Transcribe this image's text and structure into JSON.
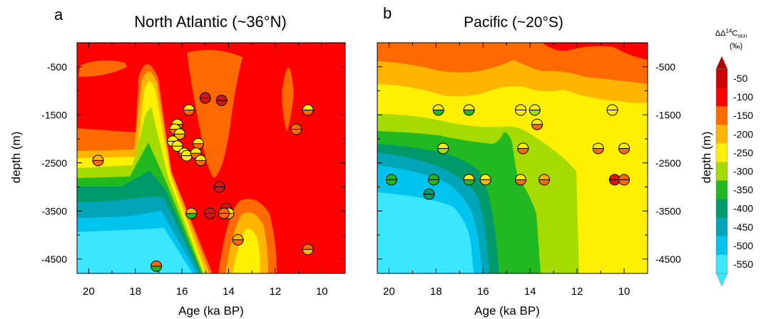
{
  "colormap": {
    "title": "ΔΔ",
    "title_sup": "14",
    "title_main": "C",
    "title_sub": "ocn",
    "unit": "(‰)",
    "levels": [
      "-50",
      "-100",
      "-150",
      "-200",
      "-250",
      "-300",
      "-350",
      "-400",
      "-450",
      "-500",
      "-550"
    ],
    "colors": [
      "#cc0000",
      "#ff0000",
      "#ff6a00",
      "#ffb400",
      "#ffef00",
      "#a6db00",
      "#22b822",
      "#009a6a",
      "#00a5b8",
      "#00c4ee",
      "#3be7ff"
    ]
  },
  "chart_data": [
    {
      "type": "contour",
      "panel_letter": "a",
      "title": "North Atlantic (~36°N)",
      "xlabel": "Age (ka BP)",
      "ylabel": "depth (m)",
      "xlim": [
        20.5,
        9
      ],
      "ylim": [
        -4800,
        0
      ],
      "xticks": [
        "20",
        "18",
        "16",
        "14",
        "12",
        "10"
      ],
      "yticks": [
        "-500",
        "-1500",
        "-2500",
        "-3500",
        "-4500"
      ],
      "points": [
        {
          "age": 15.0,
          "depth": -1150,
          "top": "#d01818",
          "bottom": "#d01818"
        },
        {
          "age": 14.3,
          "depth": -1200,
          "top": "#d01818",
          "bottom": "#d01818"
        },
        {
          "age": 15.7,
          "depth": -1400,
          "top": "#ffef00",
          "bottom": "#ff6a00"
        },
        {
          "age": 10.6,
          "depth": -1400,
          "top": "#ffef00",
          "bottom": "#ff6a00"
        },
        {
          "age": 11.1,
          "depth": -1800,
          "top": "#ff6a00",
          "bottom": "#ff6a00"
        },
        {
          "age": 16.2,
          "depth": -1700,
          "top": "#ffef00",
          "bottom": "#ff6a00"
        },
        {
          "age": 16.3,
          "depth": -1800,
          "top": "#ffef00",
          "bottom": "#ff6a00"
        },
        {
          "age": 16.1,
          "depth": -1900,
          "top": "#ffef00",
          "bottom": "#ffb400"
        },
        {
          "age": 16.4,
          "depth": -2050,
          "top": "#ffef00",
          "bottom": "#ffef00"
        },
        {
          "age": 16.2,
          "depth": -2150,
          "top": "#ffef00",
          "bottom": "#ffef00"
        },
        {
          "age": 15.9,
          "depth": -2300,
          "top": "#ffef00",
          "bottom": "#ff6a00"
        },
        {
          "age": 15.8,
          "depth": -2350,
          "top": "#ffef00",
          "bottom": "#ffef00"
        },
        {
          "age": 15.3,
          "depth": -2100,
          "top": "#ffef00",
          "bottom": "#ff6a00"
        },
        {
          "age": 15.4,
          "depth": -2300,
          "top": "#ffef00",
          "bottom": "#ff6a00"
        },
        {
          "age": 15.2,
          "depth": -2450,
          "top": "#ffef00",
          "bottom": "#ff6a00"
        },
        {
          "age": 19.6,
          "depth": -2450,
          "top": "#ffb400",
          "bottom": "#ff6a00"
        },
        {
          "age": 14.4,
          "depth": -3000,
          "top": "#d01818",
          "bottom": "#d01818"
        },
        {
          "age": 15.6,
          "depth": -3550,
          "top": "#ffb400",
          "bottom": "#22b822"
        },
        {
          "age": 14.8,
          "depth": -3550,
          "top": "#d01818",
          "bottom": "#d01818"
        },
        {
          "age": 14.1,
          "depth": -3450,
          "top": "#d01818",
          "bottom": "#d01818"
        },
        {
          "age": 14.0,
          "depth": -3550,
          "top": "#ffef00",
          "bottom": "#ffb400"
        },
        {
          "age": 14.2,
          "depth": -3550,
          "top": "#ff6a00",
          "bottom": "#ff6a00"
        },
        {
          "age": 13.6,
          "depth": -4100,
          "top": "#ffb400",
          "bottom": "#ff6a00"
        },
        {
          "age": 10.6,
          "depth": -4300,
          "top": "#ff6a00",
          "bottom": "#ffb400"
        },
        {
          "age": 17.1,
          "depth": -4650,
          "top": "#ff6a00",
          "bottom": "#22b822"
        }
      ]
    },
    {
      "type": "contour",
      "panel_letter": "b",
      "title": "Pacific (~20°S)",
      "xlabel": "Age (ka BP)",
      "ylabel": "depth (m)",
      "xlim": [
        20.5,
        9
      ],
      "ylim": [
        -4800,
        0
      ],
      "xticks": [
        "20",
        "18",
        "16",
        "14",
        "12",
        "10"
      ],
      "yticks": [
        "-500",
        "-1500",
        "-2500",
        "-3500",
        "-4500"
      ],
      "points": [
        {
          "age": 17.9,
          "depth": -1400,
          "top": "#ffef00",
          "bottom": "#22b822"
        },
        {
          "age": 16.6,
          "depth": -1400,
          "top": "#ffef00",
          "bottom": "#22b822"
        },
        {
          "age": 14.4,
          "depth": -1400,
          "top": "#ffef00",
          "bottom": "#ffef00"
        },
        {
          "age": 13.8,
          "depth": -1400,
          "top": "#ffef00",
          "bottom": "#a6db00"
        },
        {
          "age": 10.5,
          "depth": -1400,
          "top": "#ffef00",
          "bottom": "#ffef00"
        },
        {
          "age": 13.7,
          "depth": -1700,
          "top": "#ffef00",
          "bottom": "#ff6a00"
        },
        {
          "age": 17.7,
          "depth": -2200,
          "top": "#ffef00",
          "bottom": "#a6db00"
        },
        {
          "age": 14.3,
          "depth": -2200,
          "top": "#ffef00",
          "bottom": "#ff6a00"
        },
        {
          "age": 11.1,
          "depth": -2200,
          "top": "#ffef00",
          "bottom": "#ff6a00"
        },
        {
          "age": 10.0,
          "depth": -2200,
          "top": "#ffef00",
          "bottom": "#ff6a00"
        },
        {
          "age": 19.9,
          "depth": -2850,
          "top": "#22b822",
          "bottom": "#22b822"
        },
        {
          "age": 18.1,
          "depth": -2850,
          "top": "#22b822",
          "bottom": "#22b822"
        },
        {
          "age": 16.6,
          "depth": -2850,
          "top": "#ffef00",
          "bottom": "#22b822"
        },
        {
          "age": 15.9,
          "depth": -2850,
          "top": "#ffef00",
          "bottom": "#ffb400"
        },
        {
          "age": 14.4,
          "depth": -2850,
          "top": "#ffef00",
          "bottom": "#ff6a00"
        },
        {
          "age": 13.4,
          "depth": -2850,
          "top": "#ffb400",
          "bottom": "#ff6a00"
        },
        {
          "age": 10.4,
          "depth": -2850,
          "top": "#e01010",
          "bottom": "#e01010"
        },
        {
          "age": 10.0,
          "depth": -2850,
          "top": "#ff6a00",
          "bottom": "#ff6a00"
        },
        {
          "age": 18.3,
          "depth": -3150,
          "top": "#009a6a",
          "bottom": "#009a6a"
        }
      ]
    }
  ]
}
